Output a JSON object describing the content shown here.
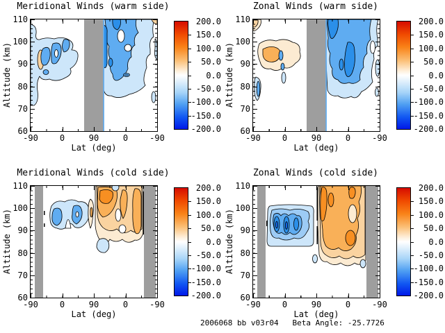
{
  "figure": {
    "footer": "2006068 bb v03r04   Beta Angle: -25.7726",
    "background": "#ffffff"
  },
  "palette": {
    "gray_band": "#9e9e9e",
    "blue1": "#cde6fa",
    "blue2": "#9ccbf5",
    "blue3": "#5facf1",
    "blue4": "#2b8fe9",
    "blue5": "#1468e8",
    "orange1": "#fcebd2",
    "orange2": "#fad3a0",
    "orange3": "#f9b058",
    "orange4": "#f78f22"
  },
  "colorbar": {
    "ticks": [
      "200.0",
      "150.0",
      "100.0",
      "50.0",
      "0.0",
      "-50.0",
      "-100.0",
      "-150.0",
      "-200.0"
    ],
    "min": -200,
    "max": 200,
    "stops": [
      "#d60c00 0%",
      "#f04a00 12%",
      "#f98318 24%",
      "#fbbe74 36%",
      "#fef0dc 46%",
      "#ffffff 50%",
      "#dfeffc 56%",
      "#a6d4f8 66%",
      "#4f9ff2 77%",
      "#1157f2 89%",
      "#0018e8 100%"
    ]
  },
  "panels": [
    {
      "id": "meridional-warm",
      "title": "Meridional Winds (warm side)",
      "xlabel": "Lat (deg)",
      "ylabel": "Altitude (km)",
      "x_ticks": [
        "-90",
        "0",
        "90",
        "0",
        "-90"
      ],
      "y_ticks": [
        "110",
        "100",
        "90",
        "80",
        "70",
        "60"
      ]
    },
    {
      "id": "zonal-warm",
      "title": "Zonal Winds (warm side)",
      "xlabel": "Lat (deg)",
      "ylabel": "Altitude (km)",
      "x_ticks": [
        "-90",
        "0",
        "90",
        "0",
        "-90"
      ],
      "y_ticks": [
        "110",
        "100",
        "90",
        "80",
        "70",
        "60"
      ]
    },
    {
      "id": "meridional-cold",
      "title": "Meridional Winds (cold side)",
      "xlabel": "Lat (deg)",
      "ylabel": "Altitude (km)",
      "x_ticks": [
        "-90",
        "0",
        "90",
        "0",
        "-90"
      ],
      "y_ticks": [
        "110",
        "100",
        "90",
        "80",
        "70",
        "60"
      ]
    },
    {
      "id": "zonal-cold",
      "title": "Zonal Winds (cold side)",
      "xlabel": "Lat (deg)",
      "ylabel": "Altitude (km)",
      "x_ticks": [
        "-90",
        "0",
        "90",
        "0",
        "-90"
      ],
      "y_ticks": [
        "110",
        "100",
        "90",
        "80",
        "70",
        "60"
      ]
    }
  ],
  "chart_data": [
    {
      "type": "contour",
      "panel": "top-left",
      "title": "Meridional Winds (warm side)",
      "xlabel": "Lat (deg)",
      "ylabel": "Altitude (km)",
      "x_tick_labels": [
        -90,
        0,
        90,
        0,
        -90
      ],
      "x_structure": "latitude along orbit: ascending -90 to +90, then descending +90 to -90",
      "ylim": [
        60,
        110
      ],
      "y_tick_labels": [
        60,
        70,
        80,
        90,
        100,
        110
      ],
      "colorbar_range": [
        -200,
        200
      ],
      "colorbar_tick_labels": [
        200,
        150,
        100,
        50,
        0,
        -50,
        -100,
        -150,
        -200
      ],
      "missing_data": "gray band over orbit segment around +90 latitude (lat > ~60 ascending through ~60 descending)",
      "features": [
        {
          "where": "ascending lats -90..55, alt 75..105 km",
          "value": "-25..-50 (light blue) with -50..-75 cores near lat -20..20, alt 85..100 km"
        },
        {
          "where": "ascending lat ~-45, alt ~93 km",
          "value": "small +25..+50 warm patch"
        },
        {
          "where": "descending lats 60..-80, alt 72..110 km",
          "value": "broad -25..-75 region; -75..-100 strips near the gray band and lat ~40..60 descending at 95..110 km; small white holes near lat 0 descending, alt ~100 km"
        },
        {
          "where": "top-right corner descending -85..-90, alt ~110 km",
          "value": "tiny +25..+50 sliver"
        }
      ]
    },
    {
      "type": "contour",
      "panel": "top-right",
      "title": "Zonal Winds (warm side)",
      "xlabel": "Lat (deg)",
      "ylabel": "Altitude (km)",
      "x_tick_labels": [
        -90,
        0,
        90,
        0,
        -90
      ],
      "x_structure": "latitude along orbit: ascending -90 to +90, then descending +90 to -90",
      "ylim": [
        60,
        110
      ],
      "y_tick_labels": [
        60,
        70,
        80,
        90,
        100,
        110
      ],
      "colorbar_range": [
        -200,
        200
      ],
      "colorbar_tick_labels": [
        200,
        150,
        100,
        50,
        0,
        -50,
        -100,
        -150,
        -200
      ],
      "missing_data": "gray band over orbit segment around +90 latitude",
      "features": [
        {
          "where": "ascending lats -75..30, alt 85..100 km",
          "value": "+25..+50 tan region with +50..+75 orange core near lat -60..-25, alt 88..97 km; small -50..-75 blue spots embedded near lat -10"
        },
        {
          "where": "ascending lat ~-80, alt 73..85 km",
          "value": "-25..-75 narrow blue strip"
        },
        {
          "where": "ascending lat -90..-85, alt 105..110 km",
          "value": "small +25..+50 corner patch"
        },
        {
          "where": "descending lats 60..-85, alt 72..110 km",
          "value": "large -25..-75 blue region with -75..-100 vertical cores near the gray band (alt 95..110 km) and near lat ~0 descending (alt 78..95 km)"
        }
      ]
    },
    {
      "type": "contour",
      "panel": "bottom-left",
      "title": "Meridional Winds (cold side)",
      "xlabel": "Lat (deg)",
      "ylabel": "Altitude (km)",
      "x_tick_labels": [
        -90,
        0,
        90,
        0,
        -90
      ],
      "x_structure": "latitude along orbit: ascending -90 to +90, then descending +90 to -90",
      "ylim": [
        60,
        110
      ],
      "y_tick_labels": [
        60,
        70,
        80,
        90,
        100,
        110
      ],
      "colorbar_range": [
        -200,
        200
      ],
      "colorbar_tick_labels": [
        200,
        150,
        100,
        50,
        0,
        -50,
        -100,
        -150,
        -200
      ],
      "missing_data": "gray bands at both poleward ends: ascending lat -90..-65 and descending lat -65..-90",
      "features": [
        {
          "where": "ascending lats -35..50, alt 90..103 km",
          "value": "-25..-50 arch with two -50..-75 lobes (lat ~-20 and ~25, alt 92..101 km)"
        },
        {
          "where": "ascending lat ~80, alt 92..104 km",
          "value": "narrow +25..+50 strip"
        },
        {
          "where": "descending lats 90..-55, alt 85..110 km",
          "value": "+25..+75 broad warm region; +75..+100 core near lat 60..80 descending, alt 102..108 km; +50..+75 band near lat -40..-55 descending"
        },
        {
          "where": "descending lat ~65, alt 80..87 km",
          "value": "small -25..-50 blue blob"
        }
      ]
    },
    {
      "type": "contour",
      "panel": "bottom-right",
      "title": "Zonal Winds (cold side)",
      "xlabel": "Lat (deg)",
      "ylabel": "Altitude (km)",
      "x_tick_labels": [
        -90,
        0,
        90,
        0,
        -90
      ],
      "x_structure": "latitude along orbit: ascending -90 to +90, then descending +90 to -90",
      "ylim": [
        60,
        110
      ],
      "y_tick_labels": [
        60,
        70,
        80,
        90,
        100,
        110
      ],
      "colorbar_range": [
        -200,
        200
      ],
      "colorbar_tick_labels": [
        200,
        150,
        100,
        50,
        0,
        -50,
        -100,
        -150,
        -200
      ],
      "missing_data": "gray bands at both poleward ends: ascending lat -90..-65 and descending lat -65..-90",
      "features": [
        {
          "where": "ascending lats -50..55, alt 83..101 km",
          "value": "concentric negative cell: -25..-50 outer, -50..-75 and -75..-100 scalloped lobes, -100..-125 cores near lats -25, 5, 30 at ~90 km"
        },
        {
          "where": "descending lats 90..-55, alt 73..110 km",
          "value": "+25..+75 broad warm region; +75..+100 streaks near lat 75..90 descending and a core near lat ~35 descending at 83..88 km; pale +0..+25 hole near lat ~25 descending, alt 95..103 km"
        },
        {
          "where": "descending lat ~88 alt 77..80 km and lat ~-45 alt 73..77 km",
          "value": "tiny -25..-50 blue spots"
        }
      ]
    }
  ]
}
